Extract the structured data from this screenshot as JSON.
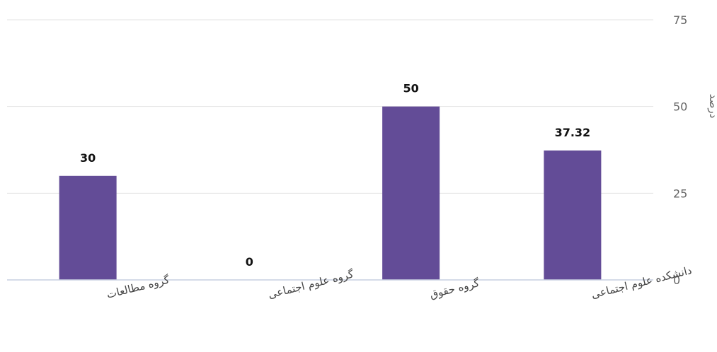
{
  "chart_data": {
    "type": "bar",
    "categories": [
      "دانشکده علوم اجتماعی",
      "گروه حقوق",
      "گروه علوم اجتماعی",
      "گروه مطالعات"
    ],
    "values": [
      37.32,
      50,
      0,
      30
    ],
    "value_labels": [
      "37.32",
      "50",
      "0",
      "30"
    ],
    "ylim": [
      0,
      75
    ],
    "yticks": [
      0,
      25,
      50,
      75
    ],
    "ylabel": "درصد",
    "yaxis_side": "right",
    "grid": true,
    "bar_color": "#634c97",
    "gridline_color": "#e3e3e3",
    "axis_color": "#c7cfe0"
  }
}
